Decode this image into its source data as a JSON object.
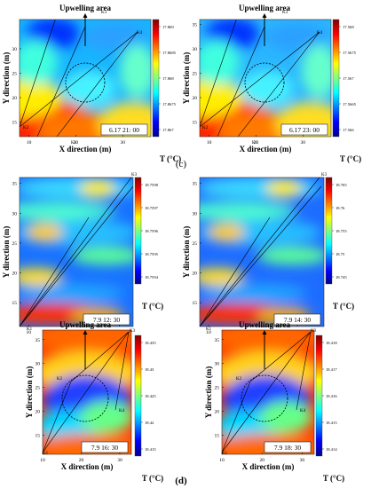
{
  "figure": {
    "panel_label_c": "(c)",
    "panel_label_d": "(d)"
  },
  "chart_data": [
    {
      "type": "heatmap",
      "id": "c-left",
      "title": "Upwelling area",
      "xlabel": "X direction (m)",
      "ylabel": "Y direction (m)",
      "xticks": [
        10,
        20,
        30
      ],
      "yticks": [
        15,
        20,
        25,
        30
      ],
      "timestamp": "6.17   21\u0001 00",
      "colorbar": {
        "label": "T (°C)",
        "ticks": [
          "17.869",
          "17.8685",
          "17.868",
          "17.8675",
          "17.867"
        ]
      },
      "markers": [
        "K1",
        "K2",
        "K3",
        "K4"
      ],
      "colormap": "jet"
    },
    {
      "type": "heatmap",
      "id": "c-right",
      "title": "Upwelling area",
      "xlabel": "X direction (m)",
      "ylabel": "Y direction (m)",
      "xticks": [
        10,
        20,
        30
      ],
      "yticks": [
        15,
        20,
        25,
        30,
        35
      ],
      "timestamp": "6.17   23\u0001 00",
      "colorbar": {
        "label": "T (°C)",
        "ticks": [
          "17.568",
          "17.5675",
          "17.567",
          "17.5665",
          "17.566"
        ]
      },
      "markers": [
        "K1",
        "K2",
        "K3",
        "K4"
      ],
      "colormap": "jet"
    },
    {
      "type": "heatmap",
      "id": "mid-left",
      "xlabel": "X direction (m)",
      "ylabel": "Y direction (m)",
      "xticks": [
        10,
        20,
        30
      ],
      "yticks": [
        15,
        20,
        25,
        30,
        35
      ],
      "timestamp": "7.9   12\u0001 30",
      "colorbar": {
        "label": "T (°C)",
        "ticks": [
          "18.7598",
          "18.7597",
          "18.7596",
          "18.7595",
          "18.7594"
        ]
      },
      "markers": [
        "K1",
        "K3"
      ],
      "colormap": "jet"
    },
    {
      "type": "heatmap",
      "id": "mid-right",
      "xlabel": "X direction (m)",
      "ylabel": "Y direction (m)",
      "xticks": [
        10,
        20,
        30
      ],
      "yticks": [
        15,
        20,
        25,
        30,
        35
      ],
      "timestamp": "7.9   14\u0001 30",
      "colorbar": {
        "label": "T (°C)",
        "ticks": [
          "18.765",
          "18.76",
          "18.755",
          "18.75",
          "18.745"
        ]
      },
      "markers": [
        "K1",
        "K3"
      ],
      "colormap": "jet"
    },
    {
      "type": "heatmap",
      "id": "d-left",
      "title": "Upwelling area",
      "xlabel": "X direction (m)",
      "ylabel": "Y direction (m)",
      "xticks": [
        10,
        20,
        30
      ],
      "yticks": [
        15,
        20,
        25,
        30,
        35
      ],
      "timestamp": "7.9   16\u0001 30",
      "colorbar": {
        "label": "T (°C)",
        "ticks": [
          "18.435",
          "18.43",
          "18.425",
          "18.42",
          "18.415"
        ]
      },
      "markers": [
        "K1",
        "K2",
        "K3",
        "K4"
      ],
      "colormap": "jet"
    },
    {
      "type": "heatmap",
      "id": "d-right",
      "title": "Upwelling area",
      "xlabel": "X direction (m)",
      "ylabel": "Y direction (m)",
      "xticks": [
        10,
        20,
        30
      ],
      "yticks": [
        15,
        20,
        25,
        30,
        35
      ],
      "timestamp": "7.9   18\u0001 30",
      "colorbar": {
        "label": "T (°C)",
        "ticks": [
          "18.418",
          "18.417",
          "18.416",
          "18.415",
          "18.414"
        ]
      },
      "markers": [
        "K1",
        "K2",
        "K3",
        "K4"
      ],
      "colormap": "jet"
    }
  ]
}
